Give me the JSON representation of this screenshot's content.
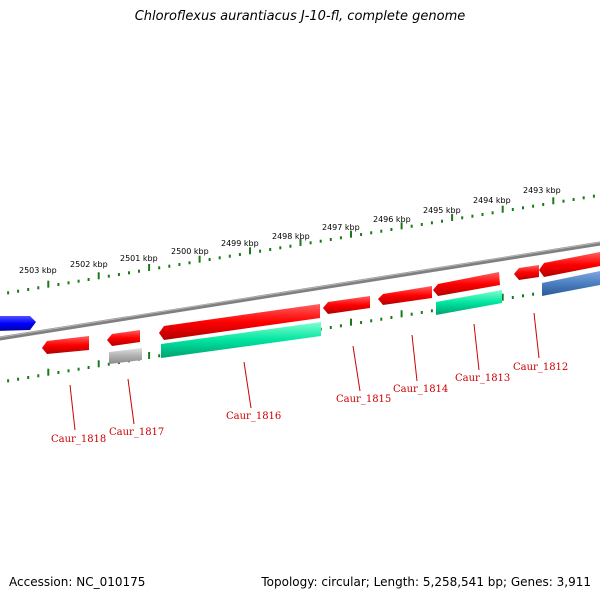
{
  "title": "Chloroflexus aurantiacus J-10-fl, complete genome",
  "footer": {
    "accession": "Accession: NC_010175",
    "summary": "Topology: circular; Length: 5,258,541 bp; Genes: 3,911"
  },
  "ruler_labels": [
    "2503 kbp",
    "2502 kbp",
    "2501 kbp",
    "2500 kbp",
    "2499 kbp",
    "2498 kbp",
    "2497 kbp",
    "2496 kbp",
    "2495 kbp",
    "2494 kbp",
    "2493 kbp"
  ],
  "genes": [
    "Caur_1818",
    "Caur_1817",
    "Caur_1816",
    "Caur_1815",
    "Caur_1814",
    "Caur_1813",
    "Caur_1812"
  ],
  "colors": {
    "backbone": "#808080",
    "cds": "#ff0000",
    "rna": "#00e5a0",
    "pseudo": "#b0b0b0",
    "other_strand": "#4a7fc0",
    "left_feature": "#0000ff",
    "ticks": "#1a7a1a",
    "label": "#cc0000"
  }
}
